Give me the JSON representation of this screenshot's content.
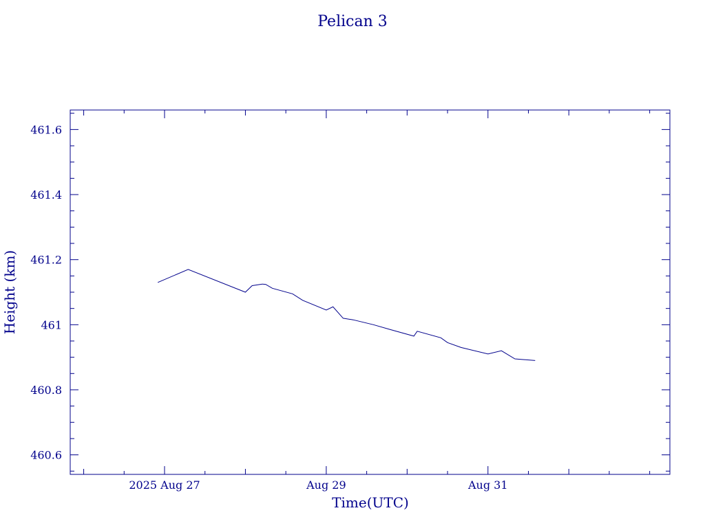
{
  "chart_data": {
    "type": "line",
    "title": "Pelican 3",
    "xlabel": "Time(UTC)",
    "ylabel": "Height (km)",
    "ylim": [
      460.54,
      461.66
    ],
    "xlim": [
      "2025-08-25T20:00",
      "2025-09-02T06:00"
    ],
    "y_ticks": [
      "460.6",
      "460.8",
      "461",
      "461.2",
      "461.4",
      "461.6"
    ],
    "x_ticks": [
      "2025 Aug 27",
      "Aug 29",
      "Aug 31"
    ],
    "x_tick_values": [
      "2025-08-27T00:00",
      "2025-08-29T00:00",
      "2025-08-31T00:00"
    ],
    "grid": false,
    "color": "#00008b",
    "series": [
      {
        "x": [
          "2025-08-26T22:00",
          "2025-08-27T07:00",
          "2025-08-28T00:00",
          "2025-08-28T02:00",
          "2025-08-28T05:00",
          "2025-08-28T06:00",
          "2025-08-28T08:00",
          "2025-08-28T14:00",
          "2025-08-28T17:00",
          "2025-08-29T00:00",
          "2025-08-29T02:00",
          "2025-08-29T05:00",
          "2025-08-29T08:00",
          "2025-08-29T14:00",
          "2025-08-29T19:00",
          "2025-08-30T02:00",
          "2025-08-30T03:00",
          "2025-08-30T10:00",
          "2025-08-30T12:00",
          "2025-08-30T16:00",
          "2025-08-31T00:00",
          "2025-08-31T04:00",
          "2025-08-31T08:00",
          "2025-08-31T14:00"
        ],
        "y": [
          461.13,
          461.17,
          461.1,
          461.12,
          461.125,
          461.124,
          461.112,
          461.095,
          461.075,
          461.045,
          461.055,
          461.02,
          461.015,
          461.0,
          460.985,
          460.965,
          460.98,
          460.96,
          460.945,
          460.93,
          460.91,
          460.92,
          460.895,
          460.89
        ]
      }
    ]
  }
}
